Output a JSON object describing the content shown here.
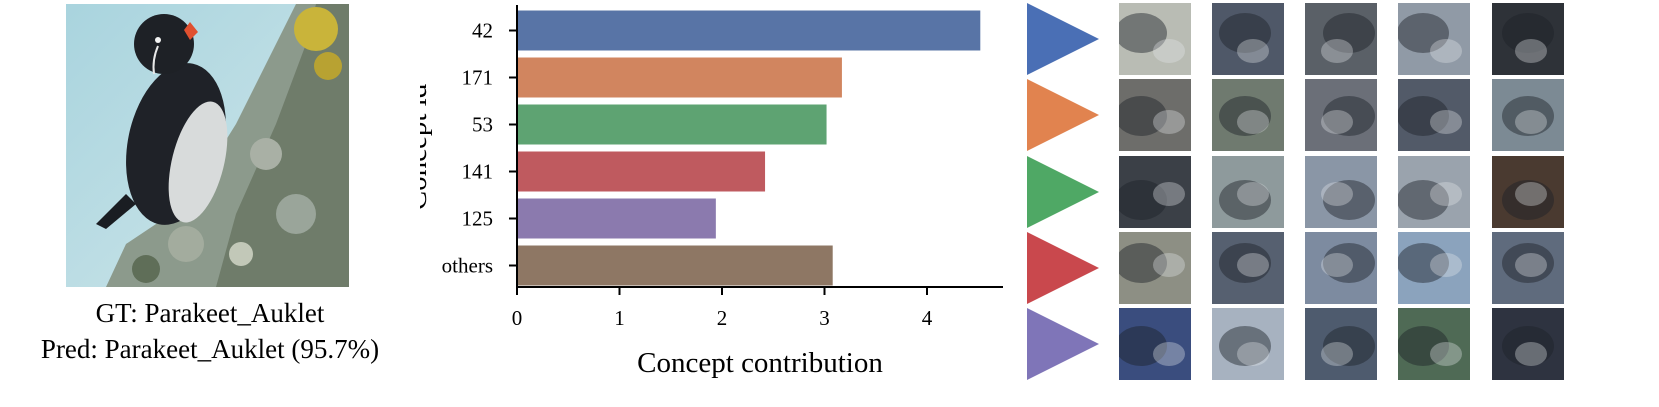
{
  "input": {
    "gt_caption": "GT: Parakeet_Auklet",
    "pred_caption": "Pred: Parakeet_Auklet (95.7%)"
  },
  "chart_data": {
    "type": "bar",
    "orientation": "horizontal",
    "categories": [
      "42",
      "171",
      "53",
      "141",
      "125",
      "others"
    ],
    "values": [
      4.52,
      3.17,
      3.02,
      2.42,
      1.94,
      3.08
    ],
    "colors": [
      "#5874a6",
      "#d1855f",
      "#5ea372",
      "#bf5a5f",
      "#8b7aae",
      "#8e7764"
    ],
    "title": "",
    "xlabel": "Concept contribution",
    "ylabel": "Concept id",
    "xlim": [
      0,
      4.7
    ],
    "xticks": [
      0,
      1,
      2,
      3,
      4
    ],
    "grid": false,
    "legend": "none"
  },
  "concepts": [
    {
      "id": "42",
      "color": "#4a6fb5",
      "thumb_colors": [
        "#b9bcb4",
        "#4f5868",
        "#5a6067",
        "#909aa6",
        "#2e3238"
      ]
    },
    {
      "id": "171",
      "color": "#e1834f",
      "thumb_colors": [
        "#6d6d6a",
        "#6f7a6f",
        "#6b6f78",
        "#525a68",
        "#7c8a94"
      ]
    },
    {
      "id": "53",
      "color": "#4fa865",
      "thumb_colors": [
        "#3b4047",
        "#8e9a9c",
        "#8a96a6",
        "#9aa3ad",
        "#4a3a30"
      ]
    },
    {
      "id": "141",
      "color": "#c9484d",
      "thumb_colors": [
        "#8d8f84",
        "#566070",
        "#7d8ba0",
        "#8ba3bd",
        "#5f6b7d"
      ]
    },
    {
      "id": "125",
      "color": "#7f75b8",
      "thumb_colors": [
        "#3a4d7e",
        "#a7b2c0",
        "#4e5b6e",
        "#4f6a55",
        "#2e3340"
      ]
    }
  ]
}
